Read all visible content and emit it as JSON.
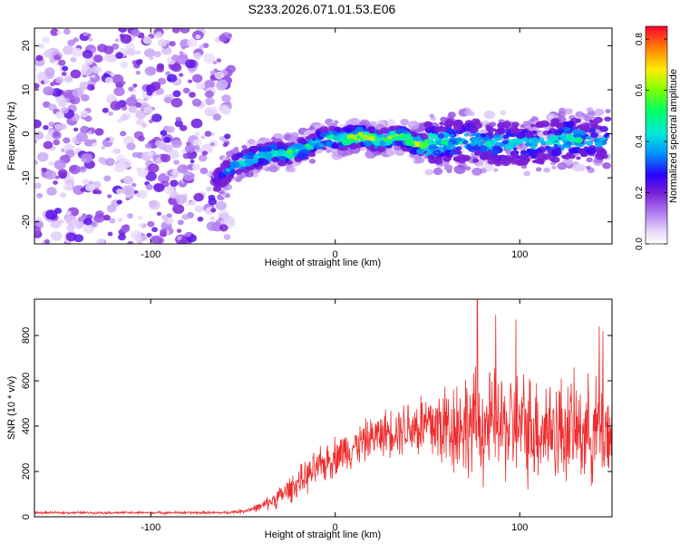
{
  "page_title": "S233.2026.071.01.53.E06",
  "colors": {
    "snr_line": "#ef2b2b",
    "weak_scatter": "#c9a8f2",
    "dense_scatter": "#7a1fd6",
    "axis": "#000000"
  },
  "chart_data": [
    {
      "id": "spectrogram",
      "type": "heatmap",
      "title": "S233.2026.071.01.53.E06",
      "xlabel": "Height of straight line (km)",
      "ylabel": "Frequency (Hz)",
      "xlim": [
        -163,
        150
      ],
      "ylim": [
        -25,
        24
      ],
      "x_ticks": [
        -100,
        0,
        100
      ],
      "x_tick_labels": [
        "-100",
        "0",
        "100"
      ],
      "y_ticks": [
        -20,
        -10,
        0,
        10,
        20
      ],
      "y_tick_labels": [
        "-20",
        "-10",
        "0",
        "10",
        "20"
      ],
      "colorbar": {
        "label": "Normalized spectral amplitude",
        "range": [
          0,
          0.85
        ],
        "ticks": [
          0,
          0.2,
          0.4,
          0.6,
          0.8
        ],
        "tick_labels": [
          "0.0",
          "0.2",
          "0.4",
          "0.6",
          "0.8"
        ],
        "stops": [
          {
            "v": 0.0,
            "color": "#ffffff"
          },
          {
            "v": 0.05,
            "color": "#e6d6fa"
          },
          {
            "v": 0.12,
            "color": "#b17ef0"
          },
          {
            "v": 0.2,
            "color": "#7a1fd6"
          },
          {
            "v": 0.27,
            "color": "#2b00ff"
          },
          {
            "v": 0.35,
            "color": "#0090ff"
          },
          {
            "v": 0.43,
            "color": "#00e8d8"
          },
          {
            "v": 0.52,
            "color": "#00ff66"
          },
          {
            "v": 0.6,
            "color": "#7cff00"
          },
          {
            "v": 0.68,
            "color": "#ffee00"
          },
          {
            "v": 0.76,
            "color": "#ff8800"
          },
          {
            "v": 0.85,
            "color": "#ff0033"
          }
        ]
      },
      "noise_region_x": [
        -163,
        -60
      ],
      "ridge": {
        "x": [
          -65,
          -55,
          -45,
          -35,
          -25,
          -15,
          -5,
          5,
          15,
          25,
          35,
          45,
          55,
          65,
          75,
          85,
          95,
          105,
          115,
          125,
          135,
          148
        ],
        "freq": [
          -11,
          -7,
          -5.5,
          -4.5,
          -4.5,
          -3,
          -1,
          -1,
          -0.5,
          -1.5,
          -0.5,
          -2.5,
          -2,
          -1.5,
          -1.5,
          -2.5,
          -2,
          -2.5,
          -2,
          -1,
          -1.5,
          -1
        ],
        "amplitude": [
          0.3,
          0.42,
          0.55,
          0.58,
          0.55,
          0.52,
          0.55,
          0.6,
          0.72,
          0.62,
          0.6,
          0.7,
          0.5,
          0.45,
          0.48,
          0.42,
          0.45,
          0.44,
          0.42,
          0.5,
          0.42,
          0.4
        ]
      }
    },
    {
      "id": "snr",
      "type": "line",
      "xlabel": "Height of straight line (km)",
      "ylabel": "SNR (10 * v/v)",
      "xlim": [
        -163,
        150
      ],
      "ylim": [
        0,
        960
      ],
      "x_ticks": [
        -100,
        0,
        100
      ],
      "x_tick_labels": [
        "-100",
        "0",
        "100"
      ],
      "y_ticks": [
        0,
        200,
        400,
        600,
        800
      ],
      "y_tick_labels": [
        "0",
        "200",
        "400",
        "600",
        "800"
      ],
      "series": [
        {
          "name": "SNR",
          "envelope_x": [
            -163,
            -60,
            -50,
            -40,
            -30,
            -20,
            -10,
            0,
            10,
            20,
            30,
            40,
            50,
            60,
            70,
            80,
            90,
            100,
            110,
            120,
            130,
            140,
            150
          ],
          "mean": [
            18,
            18,
            25,
            45,
            90,
            150,
            210,
            270,
            310,
            350,
            380,
            400,
            400,
            400,
            410,
            400,
            400,
            395,
            395,
            390,
            380,
            380,
            375
          ],
          "spread": [
            6,
            8,
            12,
            25,
            60,
            80,
            100,
            110,
            110,
            110,
            130,
            160,
            220,
            260,
            280,
            300,
            300,
            300,
            300,
            300,
            280,
            280,
            280
          ],
          "peaks": [
            {
              "x": 77,
              "y": 960
            },
            {
              "x": 143,
              "y": 840
            },
            {
              "x": 145,
              "y": 820
            },
            {
              "x": 87,
              "y": 890
            },
            {
              "x": 98,
              "y": 870
            }
          ]
        }
      ]
    }
  ]
}
